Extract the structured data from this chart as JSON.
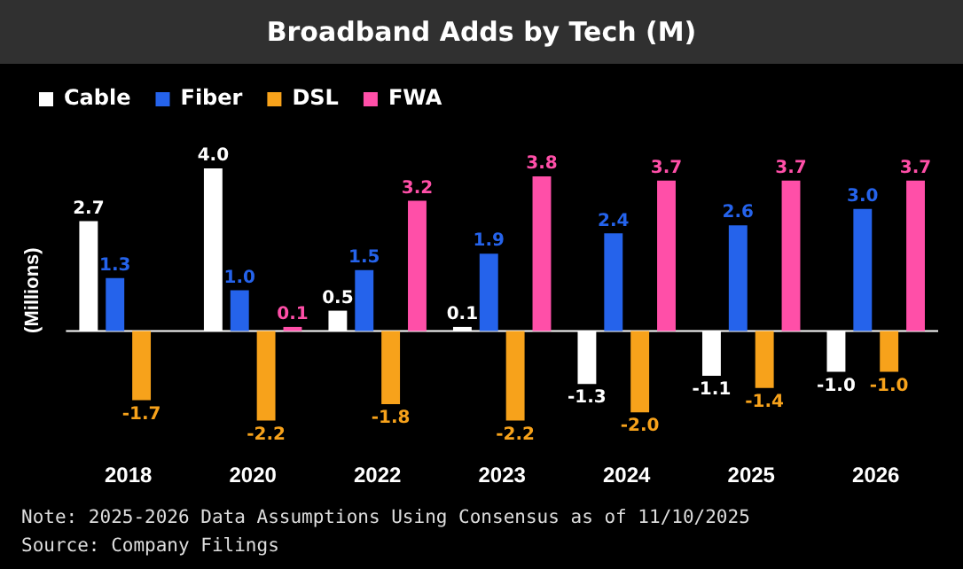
{
  "chart_data": {
    "type": "bar",
    "title": "Broadband Adds by Tech (M)",
    "ylabel": "(Millions)",
    "categories": [
      "2018",
      "2020",
      "2022",
      "2023",
      "2024",
      "2025",
      "2026"
    ],
    "series": [
      {
        "name": "Cable",
        "color": "#ffffff",
        "values": [
          2.7,
          4.0,
          0.5,
          0.1,
          -1.3,
          -1.1,
          -1.0
        ],
        "value_labels": [
          "2.7",
          "4.0",
          "0.5",
          "0.1",
          "-1.3",
          "-1.1",
          "-1.0"
        ]
      },
      {
        "name": "Fiber",
        "color": "#2563eb",
        "values": [
          1.3,
          1.0,
          1.5,
          1.9,
          2.4,
          2.6,
          3.0
        ],
        "value_labels": [
          "1.3",
          "1.0",
          "1.5",
          "1.9",
          "2.4",
          "2.6",
          "3.0"
        ]
      },
      {
        "name": "DSL",
        "color": "#f7a21b",
        "values": [
          -1.7,
          -2.2,
          -1.8,
          -2.2,
          -2.0,
          -1.4,
          -1.0
        ],
        "value_labels": [
          "-1.7",
          "-2.2",
          "-1.8",
          "-2.2",
          "-2.0",
          "-1.4",
          "-1.0"
        ]
      },
      {
        "name": "FWA",
        "color": "#ff4fa8",
        "values": [
          null,
          0.1,
          3.2,
          3.8,
          3.7,
          3.7,
          3.7
        ],
        "value_labels": [
          null,
          "0.1",
          "3.2",
          "3.8",
          "3.7",
          "3.7",
          "3.7"
        ]
      }
    ],
    "grid": false,
    "legend": "top left",
    "annotations": [
      "Note: 2025-2026 Data Assumptions Using Consensus as of 11/10/2025",
      "Source: Company Filings"
    ]
  }
}
